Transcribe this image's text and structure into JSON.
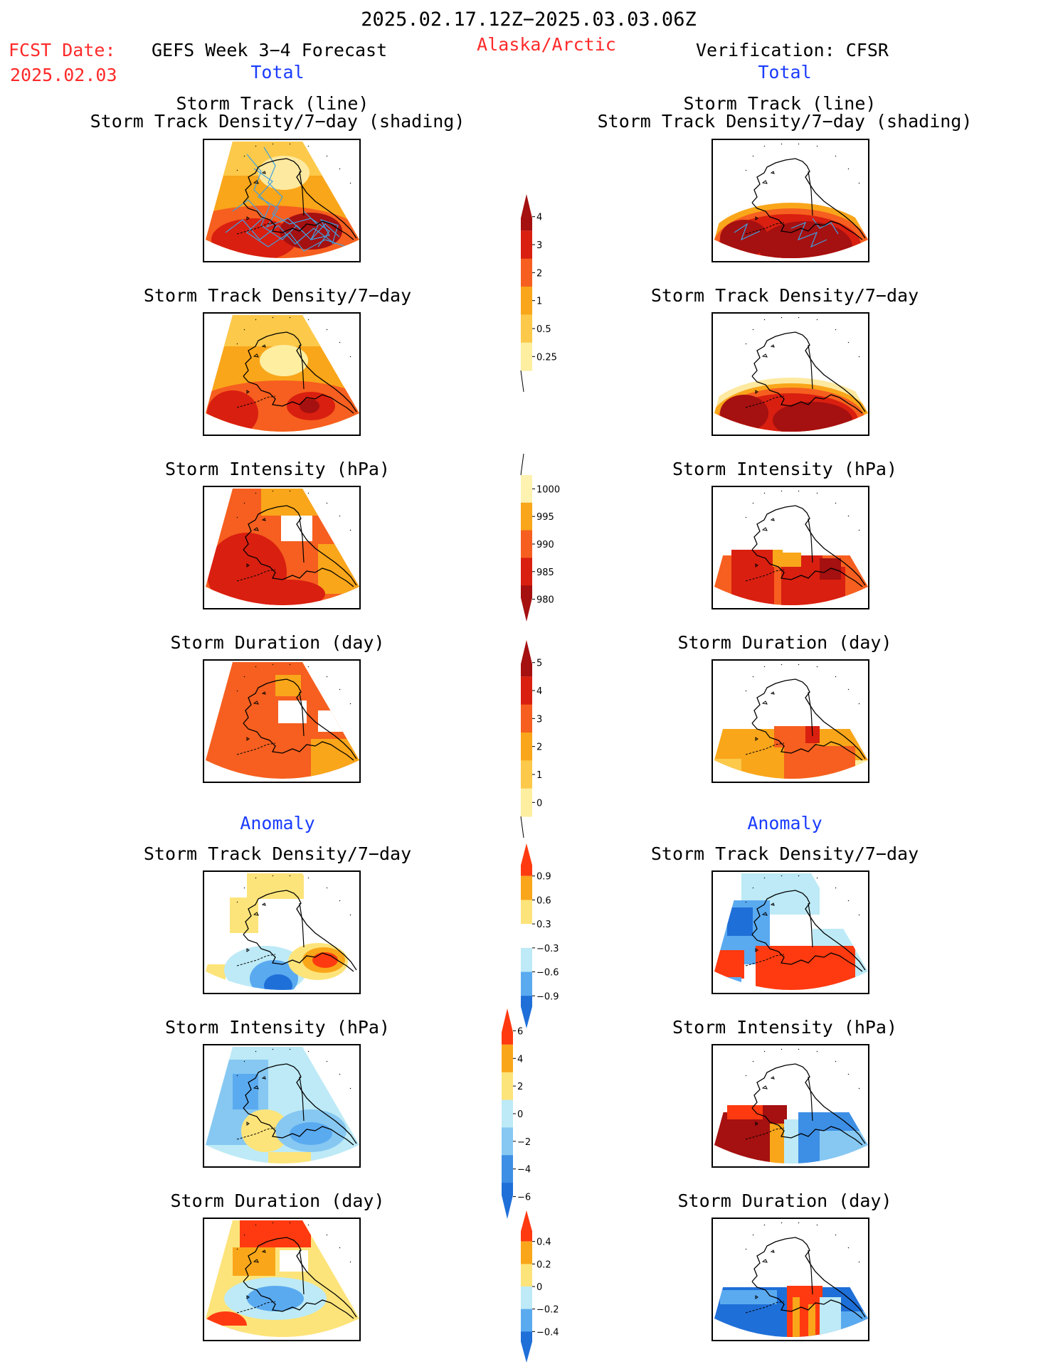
{
  "header": {
    "period": "2025.02.17.12Z−2025.03.03.06Z",
    "region": "Alaska/Arctic",
    "fcst_label": "FCST Date:",
    "fcst_date": "2025.02.03",
    "model_title": "GEFS Week 3−4 Forecast",
    "verif_title": "Verification: CFSR"
  },
  "sections": {
    "total": "Total",
    "anomaly": "Anomaly"
  },
  "panel_titles": {
    "track_line": "Storm Track (line)",
    "track_density_shading": "Storm Track Density/7−day (shading)",
    "track_density": "Storm Track Density/7−day",
    "intensity": "Storm Intensity (hPa)",
    "duration": "Storm Duration (day)"
  },
  "colorbars": [
    {
      "name": "density",
      "labels": [
        "4",
        "3",
        "2",
        "1",
        "0.5",
        "0.25"
      ],
      "colors": [
        "#a51010",
        "#d91f10",
        "#f65f1f",
        "#f9a61a",
        "#fcc94a",
        "#fdeea0"
      ]
    },
    {
      "name": "intensity",
      "labels": [
        "1000",
        "995",
        "990",
        "985",
        "980"
      ],
      "colors": [
        "#fdf2b0",
        "#f9a61a",
        "#f65f1f",
        "#d91f10",
        "#a51010"
      ]
    },
    {
      "name": "duration",
      "labels": [
        "5",
        "4",
        "3",
        "2",
        "1",
        "0"
      ],
      "colors": [
        "#a51010",
        "#d91f10",
        "#f65f1f",
        "#f9a61a",
        "#fcc94a",
        "#fdeea0"
      ]
    },
    {
      "name": "anom-density",
      "labels": [
        "0.9",
        "0.6",
        "0.3",
        "−0.3",
        "−0.6",
        "−0.9"
      ],
      "colors": [
        "#ff3a10",
        "#f9a61a",
        "#fde47a",
        "#ffffff",
        "#bdeaf6",
        "#5aaaf0",
        "#1f6fd8"
      ]
    },
    {
      "name": "anom-intensity",
      "labels": [
        "6",
        "4",
        "2",
        "0",
        "−2",
        "−4",
        "−6"
      ],
      "colors": [
        "#ff3a10",
        "#f9a61a",
        "#fde47a",
        "#bdeaf6",
        "#86c8f2",
        "#3d8fe5",
        "#1f6fd8"
      ]
    },
    {
      "name": "anom-duration",
      "labels": [
        "0.4",
        "0.2",
        "0",
        "−0.2",
        "−0.4"
      ],
      "colors": [
        "#ff3a10",
        "#f9a61a",
        "#fde47a",
        "#bdeaf6",
        "#5aaaf0",
        "#1f6fd8"
      ]
    }
  ],
  "colors": {
    "red_text": "#ff2a2a",
    "blue_text": "#1a3cff",
    "track_line": "#3fa0e0"
  }
}
